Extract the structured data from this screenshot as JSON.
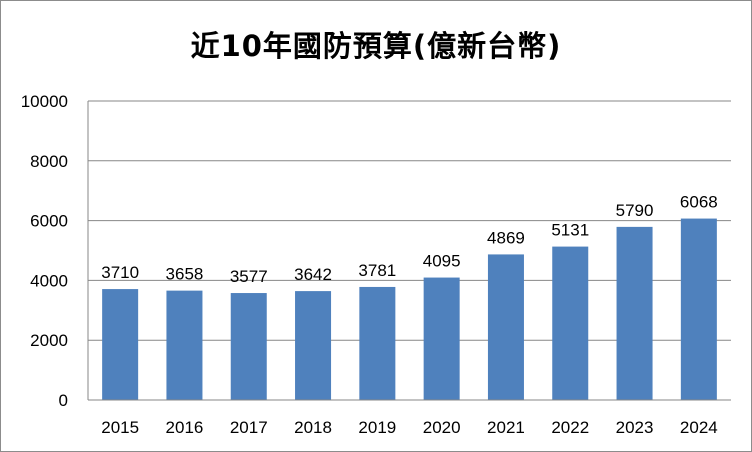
{
  "chart_data": {
    "type": "bar",
    "title": "近10年國防預算(億新台幣)",
    "categories": [
      "2015",
      "2016",
      "2017",
      "2018",
      "2019",
      "2020",
      "2021",
      "2022",
      "2023",
      "2024"
    ],
    "values": [
      3710,
      3658,
      3577,
      3642,
      3781,
      4095,
      4869,
      5131,
      5790,
      6068
    ],
    "ylim": [
      0,
      10000
    ],
    "yticks": [
      0,
      2000,
      4000,
      6000,
      8000,
      10000
    ],
    "grid": true,
    "legend": "none",
    "colors": {
      "bar": "#4f81bd",
      "grid": "#878787",
      "axis": "#878787"
    }
  }
}
